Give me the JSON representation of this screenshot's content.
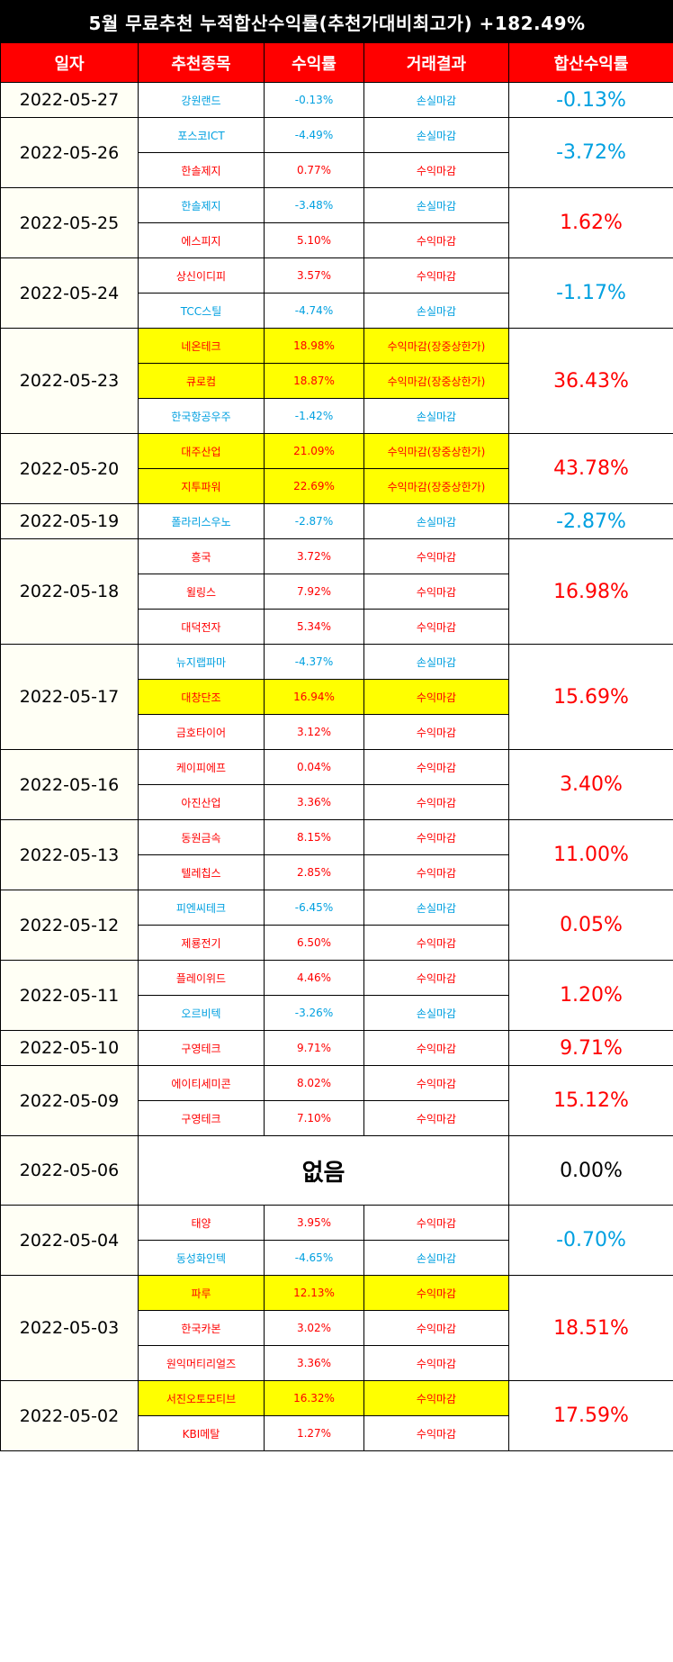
{
  "title": "5월 무료추천 누적합산수익률(추천가대비최고가) +182.49%",
  "headers": [
    "일자",
    "추천종목",
    "수익률",
    "거래결과",
    "합산수익률"
  ],
  "colors": {
    "profit": "#ff0000",
    "loss": "#00a0e0",
    "highlight": "#ffff00",
    "header_bg": "#ff0000",
    "title_bg": "#000000"
  },
  "days": [
    {
      "date": "2022-05-27",
      "total": "-0.13%",
      "total_sign": "neg",
      "rows": [
        {
          "stock": "강원랜드",
          "return": "-0.13%",
          "result": "손실마감",
          "sign": "neg",
          "highlight": false
        }
      ]
    },
    {
      "date": "2022-05-26",
      "total": "-3.72%",
      "total_sign": "neg",
      "rows": [
        {
          "stock": "포스코ICT",
          "return": "-4.49%",
          "result": "손실마감",
          "sign": "neg",
          "highlight": false
        },
        {
          "stock": "한솔제지",
          "return": "0.77%",
          "result": "수익마감",
          "sign": "pos",
          "highlight": false
        }
      ]
    },
    {
      "date": "2022-05-25",
      "total": "1.62%",
      "total_sign": "pos",
      "rows": [
        {
          "stock": "한솔제지",
          "return": "-3.48%",
          "result": "손실마감",
          "sign": "neg",
          "highlight": false
        },
        {
          "stock": "에스피지",
          "return": "5.10%",
          "result": "수익마감",
          "sign": "pos",
          "highlight": false
        }
      ]
    },
    {
      "date": "2022-05-24",
      "total": "-1.17%",
      "total_sign": "neg",
      "rows": [
        {
          "stock": "상신이디피",
          "return": "3.57%",
          "result": "수익마감",
          "sign": "pos",
          "highlight": false
        },
        {
          "stock": "TCC스틸",
          "return": "-4.74%",
          "result": "손실마감",
          "sign": "neg",
          "highlight": false
        }
      ]
    },
    {
      "date": "2022-05-23",
      "total": "36.43%",
      "total_sign": "pos",
      "rows": [
        {
          "stock": "네온테크",
          "return": "18.98%",
          "result": "수익마감(장중상한가)",
          "sign": "pos",
          "highlight": true
        },
        {
          "stock": "큐로컴",
          "return": "18.87%",
          "result": "수익마감(장중상한가)",
          "sign": "pos",
          "highlight": true
        },
        {
          "stock": "한국항공우주",
          "return": "-1.42%",
          "result": "손실마감",
          "sign": "neg",
          "highlight": false
        }
      ]
    },
    {
      "date": "2022-05-20",
      "total": "43.78%",
      "total_sign": "pos",
      "rows": [
        {
          "stock": "대주산업",
          "return": "21.09%",
          "result": "수익마감(장중상한가)",
          "sign": "pos",
          "highlight": true
        },
        {
          "stock": "지투파워",
          "return": "22.69%",
          "result": "수익마감(장중상한가)",
          "sign": "pos",
          "highlight": true
        }
      ]
    },
    {
      "date": "2022-05-19",
      "total": "-2.87%",
      "total_sign": "neg",
      "rows": [
        {
          "stock": "폴라리스우노",
          "return": "-2.87%",
          "result": "손실마감",
          "sign": "neg",
          "highlight": false
        }
      ]
    },
    {
      "date": "2022-05-18",
      "total": "16.98%",
      "total_sign": "pos",
      "rows": [
        {
          "stock": "흥국",
          "return": "3.72%",
          "result": "수익마감",
          "sign": "pos",
          "highlight": false
        },
        {
          "stock": "윌링스",
          "return": "7.92%",
          "result": "수익마감",
          "sign": "pos",
          "highlight": false
        },
        {
          "stock": "대덕전자",
          "return": "5.34%",
          "result": "수익마감",
          "sign": "pos",
          "highlight": false
        }
      ]
    },
    {
      "date": "2022-05-17",
      "total": "15.69%",
      "total_sign": "pos",
      "rows": [
        {
          "stock": "뉴지랩파마",
          "return": "-4.37%",
          "result": "손실마감",
          "sign": "neg",
          "highlight": false
        },
        {
          "stock": "대창단조",
          "return": "16.94%",
          "result": "수익마감",
          "sign": "pos",
          "highlight": true
        },
        {
          "stock": "금호타이어",
          "return": "3.12%",
          "result": "수익마감",
          "sign": "pos",
          "highlight": false
        }
      ]
    },
    {
      "date": "2022-05-16",
      "total": "3.40%",
      "total_sign": "pos",
      "rows": [
        {
          "stock": "케이피에프",
          "return": "0.04%",
          "result": "수익마감",
          "sign": "pos",
          "highlight": false
        },
        {
          "stock": "아진산업",
          "return": "3.36%",
          "result": "수익마감",
          "sign": "pos",
          "highlight": false
        }
      ]
    },
    {
      "date": "2022-05-13",
      "total": "11.00%",
      "total_sign": "pos",
      "rows": [
        {
          "stock": "동원금속",
          "return": "8.15%",
          "result": "수익마감",
          "sign": "pos",
          "highlight": false
        },
        {
          "stock": "텔레칩스",
          "return": "2.85%",
          "result": "수익마감",
          "sign": "pos",
          "highlight": false
        }
      ]
    },
    {
      "date": "2022-05-12",
      "total": "0.05%",
      "total_sign": "pos",
      "rows": [
        {
          "stock": "피엔씨테크",
          "return": "-6.45%",
          "result": "손실마감",
          "sign": "neg",
          "highlight": false
        },
        {
          "stock": "제룡전기",
          "return": "6.50%",
          "result": "수익마감",
          "sign": "pos",
          "highlight": false
        }
      ]
    },
    {
      "date": "2022-05-11",
      "total": "1.20%",
      "total_sign": "pos",
      "rows": [
        {
          "stock": "플레이위드",
          "return": "4.46%",
          "result": "수익마감",
          "sign": "pos",
          "highlight": false
        },
        {
          "stock": "오르비텍",
          "return": "-3.26%",
          "result": "손실마감",
          "sign": "neg",
          "highlight": false
        }
      ]
    },
    {
      "date": "2022-05-10",
      "total": "9.71%",
      "total_sign": "pos",
      "rows": [
        {
          "stock": "구영테크",
          "return": "9.71%",
          "result": "수익마감",
          "sign": "pos",
          "highlight": false
        }
      ]
    },
    {
      "date": "2022-05-09",
      "total": "15.12%",
      "total_sign": "pos",
      "rows": [
        {
          "stock": "에이티세미콘",
          "return": "8.02%",
          "result": "수익마감",
          "sign": "pos",
          "highlight": false
        },
        {
          "stock": "구영테크",
          "return": "7.10%",
          "result": "수익마감",
          "sign": "pos",
          "highlight": false
        }
      ]
    },
    {
      "date": "2022-05-06",
      "total": "0.00%",
      "total_sign": "zero",
      "none_label": "없음",
      "rows": []
    },
    {
      "date": "2022-05-04",
      "total": "-0.70%",
      "total_sign": "neg",
      "rows": [
        {
          "stock": "태양",
          "return": "3.95%",
          "result": "수익마감",
          "sign": "pos",
          "highlight": false
        },
        {
          "stock": "동성화인텍",
          "return": "-4.65%",
          "result": "손실마감",
          "sign": "neg",
          "highlight": false
        }
      ]
    },
    {
      "date": "2022-05-03",
      "total": "18.51%",
      "total_sign": "pos",
      "rows": [
        {
          "stock": "파루",
          "return": "12.13%",
          "result": "수익마감",
          "sign": "pos",
          "highlight": true
        },
        {
          "stock": "한국카본",
          "return": "3.02%",
          "result": "수익마감",
          "sign": "pos",
          "highlight": false
        },
        {
          "stock": "원익머티리얼즈",
          "return": "3.36%",
          "result": "수익마감",
          "sign": "pos",
          "highlight": false
        }
      ]
    },
    {
      "date": "2022-05-02",
      "total": "17.59%",
      "total_sign": "pos",
      "rows": [
        {
          "stock": "서진오토모티브",
          "return": "16.32%",
          "result": "수익마감",
          "sign": "pos",
          "highlight": true
        },
        {
          "stock": "KBI메탈",
          "return": "1.27%",
          "result": "수익마감",
          "sign": "pos",
          "highlight": false
        }
      ]
    }
  ]
}
